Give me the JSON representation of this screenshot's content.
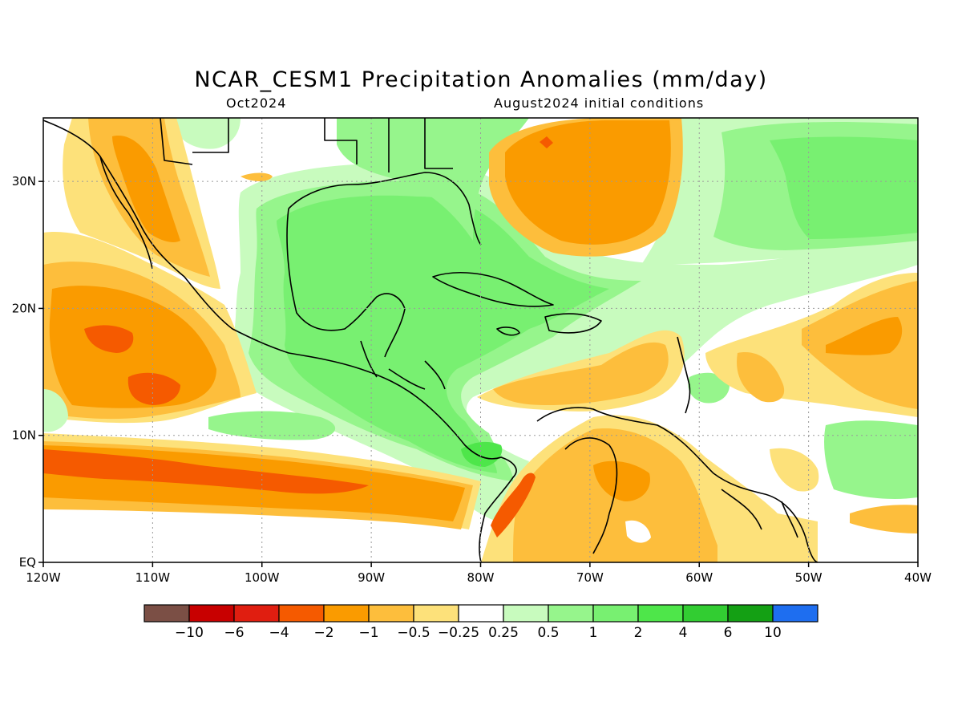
{
  "title": "NCAR_CESM1 Precipitation Anomalies (mm/day)",
  "subtitle_left": "Oct2024",
  "subtitle_right": "August2024 initial conditions",
  "map": {
    "lon_range": [
      -120,
      -40
    ],
    "lat_range": [
      0,
      35
    ],
    "grid": true,
    "x_ticks": [
      {
        "lon": -120,
        "label": "120W"
      },
      {
        "lon": -110,
        "label": "110W"
      },
      {
        "lon": -100,
        "label": "100W"
      },
      {
        "lon": -90,
        "label": "90W"
      },
      {
        "lon": -80,
        "label": "80W"
      },
      {
        "lon": -70,
        "label": "70W"
      },
      {
        "lon": -60,
        "label": "60W"
      },
      {
        "lon": -50,
        "label": "50W"
      },
      {
        "lon": -40,
        "label": "40W"
      }
    ],
    "y_ticks": [
      {
        "lat": 0,
        "label": "EQ"
      },
      {
        "lat": 10,
        "label": "10N"
      },
      {
        "lat": 20,
        "label": "20N"
      },
      {
        "lat": 30,
        "label": "30N"
      }
    ]
  },
  "colorbar": {
    "colors": [
      "#7b4f45",
      "#c80000",
      "#e01e10",
      "#f55a00",
      "#fa9b00",
      "#fdbe3c",
      "#fde17a",
      "#ffffff",
      "#c8fbbe",
      "#96f58c",
      "#78f071",
      "#4ee64a",
      "#32cd32",
      "#14a014",
      "#1e6ef0"
    ],
    "labels": [
      "−10",
      "−6",
      "−4",
      "−2",
      "−1",
      "−0.5",
      "−0.25",
      "0.25",
      "0.5",
      "1",
      "2",
      "4",
      "6",
      "10"
    ]
  }
}
